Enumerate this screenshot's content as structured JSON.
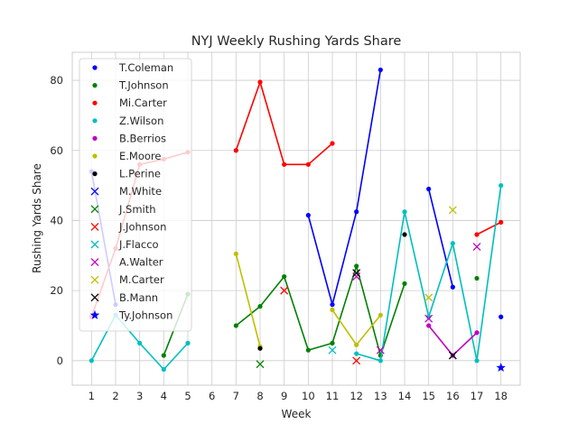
{
  "chart_data": {
    "type": "line",
    "title": "NYJ Weekly Rushing Yards Share",
    "xlabel": "Week",
    "ylabel": "Rushing Yards Share",
    "xlim": [
      0.2,
      18.8
    ],
    "ylim": [
      -7,
      88
    ],
    "xticks": [
      1,
      2,
      3,
      4,
      5,
      6,
      7,
      8,
      9,
      10,
      11,
      12,
      13,
      14,
      15,
      16,
      17,
      18
    ],
    "yticks": [
      0,
      20,
      40,
      60,
      80
    ],
    "grid": true,
    "legend_position": "upper-left",
    "series": [
      {
        "name": "T.Coleman",
        "color": "#0000ff",
        "marker": "dot",
        "x": [
          1,
          2,
          10,
          11,
          12,
          13,
          15,
          16,
          18
        ],
        "y": [
          54,
          16,
          41.5,
          16,
          42.5,
          83,
          49,
          21,
          12.5
        ]
      },
      {
        "name": "T.Johnson",
        "color": "#008000",
        "marker": "dot",
        "x": [
          4,
          5,
          7,
          8,
          9,
          10,
          11,
          12,
          13,
          14,
          17
        ],
        "y": [
          1.5,
          19,
          10,
          15.5,
          24,
          3,
          5,
          27,
          1.5,
          22,
          23.5
        ]
      },
      {
        "name": "Mi.Carter",
        "color": "#ff0000",
        "marker": "dot",
        "x": [
          1,
          2,
          3,
          4,
          5,
          7,
          8,
          9,
          10,
          11,
          17,
          18
        ],
        "y": [
          12.5,
          32,
          56,
          57.5,
          59.5,
          60,
          79.5,
          56,
          56,
          62,
          36,
          39.5
        ]
      },
      {
        "name": "Z.Wilson",
        "color": "#00bfbf",
        "marker": "dot",
        "x": [
          1,
          2,
          3,
          4,
          5,
          12,
          13,
          14,
          15,
          16,
          17,
          18
        ],
        "y": [
          0,
          13,
          5,
          -2.5,
          5,
          2,
          0,
          42.5,
          12.5,
          33.5,
          0,
          50
        ]
      },
      {
        "name": "B.Berrios",
        "color": "#bf00bf",
        "marker": "dot",
        "x": [
          15,
          16,
          17
        ],
        "y": [
          10,
          1.5,
          8
        ]
      },
      {
        "name": "E.Moore",
        "color": "#bfbf00",
        "marker": "dot",
        "x": [
          7,
          8,
          11,
          12,
          13
        ],
        "y": [
          30.5,
          4,
          14.5,
          4.5,
          13
        ]
      },
      {
        "name": "L.Perine",
        "color": "#000000",
        "marker": "dot",
        "x": [
          8,
          14
        ],
        "y": [
          3.5,
          36
        ]
      },
      {
        "name": "M.White",
        "color": "#0000ff",
        "marker": "x",
        "x": [],
        "y": []
      },
      {
        "name": "J.Smith",
        "color": "#008000",
        "marker": "x",
        "x": [
          8
        ],
        "y": [
          -1
        ]
      },
      {
        "name": "J.Johnson",
        "color": "#ff0000",
        "marker": "x",
        "x": [
          9,
          12
        ],
        "y": [
          20,
          0
        ]
      },
      {
        "name": "J.Flacco",
        "color": "#00bfbf",
        "marker": "x",
        "x": [
          11
        ],
        "y": [
          3
        ]
      },
      {
        "name": "A.Walter",
        "color": "#bf00bf",
        "marker": "x",
        "x": [
          12,
          13,
          15,
          17
        ],
        "y": [
          24,
          3,
          12,
          32.5
        ]
      },
      {
        "name": "M.Carter",
        "color": "#bfbf00",
        "marker": "x",
        "x": [
          15,
          16
        ],
        "y": [
          18,
          43
        ]
      },
      {
        "name": "B.Mann",
        "color": "#000000",
        "marker": "x",
        "x": [
          12,
          16
        ],
        "y": [
          25,
          1.5
        ]
      },
      {
        "name": "Ty.Johnson",
        "color": "#0000ff",
        "marker": "star",
        "x": [
          18
        ],
        "y": [
          -2
        ]
      }
    ]
  }
}
